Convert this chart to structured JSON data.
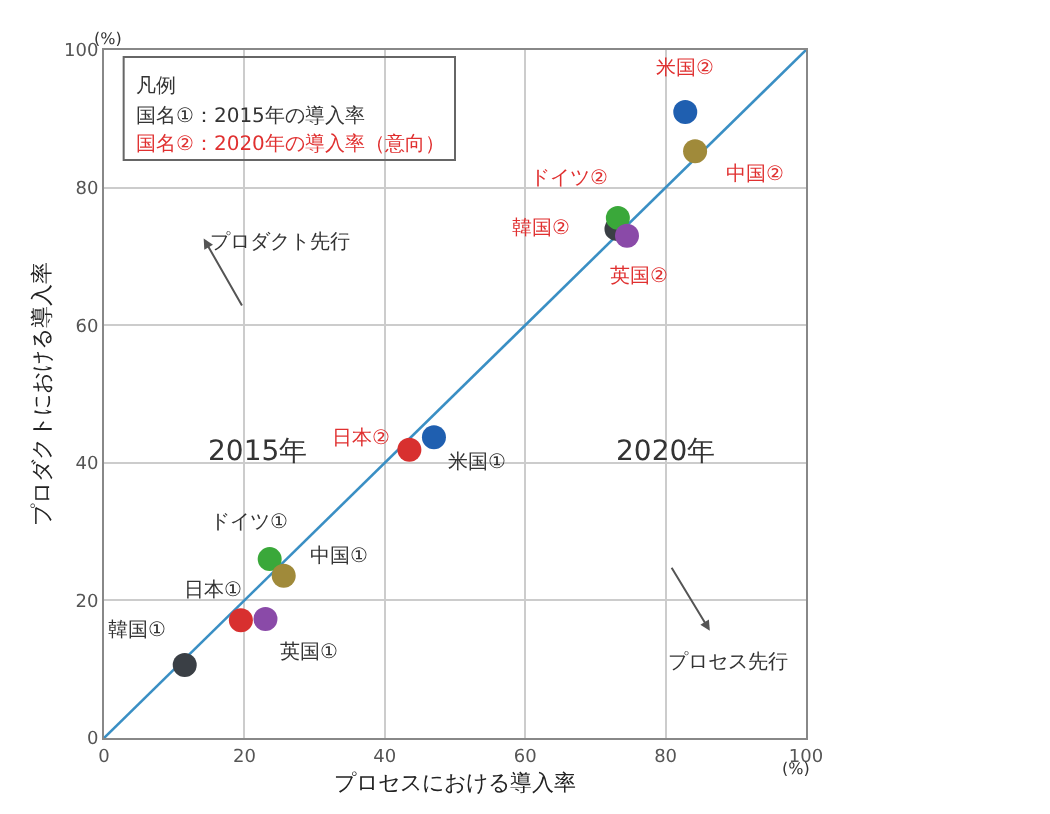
{
  "chart_data": {
    "type": "scatter",
    "xlabel": "プロセスにおける導入率",
    "ylabel": "プロダクトにおける導入率",
    "xlim": [
      0,
      100
    ],
    "ylim": [
      0,
      100
    ],
    "xticks": [
      0,
      20,
      40,
      60,
      80,
      100
    ],
    "yticks": [
      0,
      20,
      40,
      60,
      80,
      100
    ],
    "grid": true,
    "marker": "circle",
    "annotations": [
      "凡例",
      "国名①：2015年の導入率",
      "国名②：2020年の導入率（意向）",
      "プロダクト先行",
      "プロセス先行",
      "2015年",
      "2020年",
      "(%)",
      "(%)"
    ],
    "series": [
      {
        "type": "line",
        "x": [
          0,
          100
        ],
        "values": [
          0,
          100
        ],
        "color": "#3a8fc4",
        "marker": "none"
      },
      {
        "x": [
          47,
          23.6,
          25.6,
          19.5,
          23,
          11.5
        ],
        "values": [
          43.7,
          26,
          23.6,
          17.1,
          17.3,
          10.6
        ],
        "colors": [
          "#1f5fb0",
          "#3aa83a",
          "#a08a3a",
          "#d8302f",
          "#8a4aa8",
          "#3a3f45"
        ],
        "value_labels": [
          "米国①",
          "ドイツ①",
          "中国①",
          "日本①",
          "英国①",
          "韓国①"
        ]
      },
      {
        "x": [
          73,
          82.8,
          84.2,
          73.2,
          74.5,
          43.5
        ],
        "values": [
          74,
          91,
          85.3,
          75.6,
          73,
          41.9
        ],
        "colors": [
          "#3a3f45",
          "#1f5fb0",
          "#a08a3a",
          "#3aa83a",
          "#8a4aa8",
          "#d8302f"
        ],
        "value_labels": [
          "韓国②",
          "米国②",
          "中国②",
          "ドイツ②",
          "英国②",
          "日本②"
        ]
      }
    ]
  }
}
